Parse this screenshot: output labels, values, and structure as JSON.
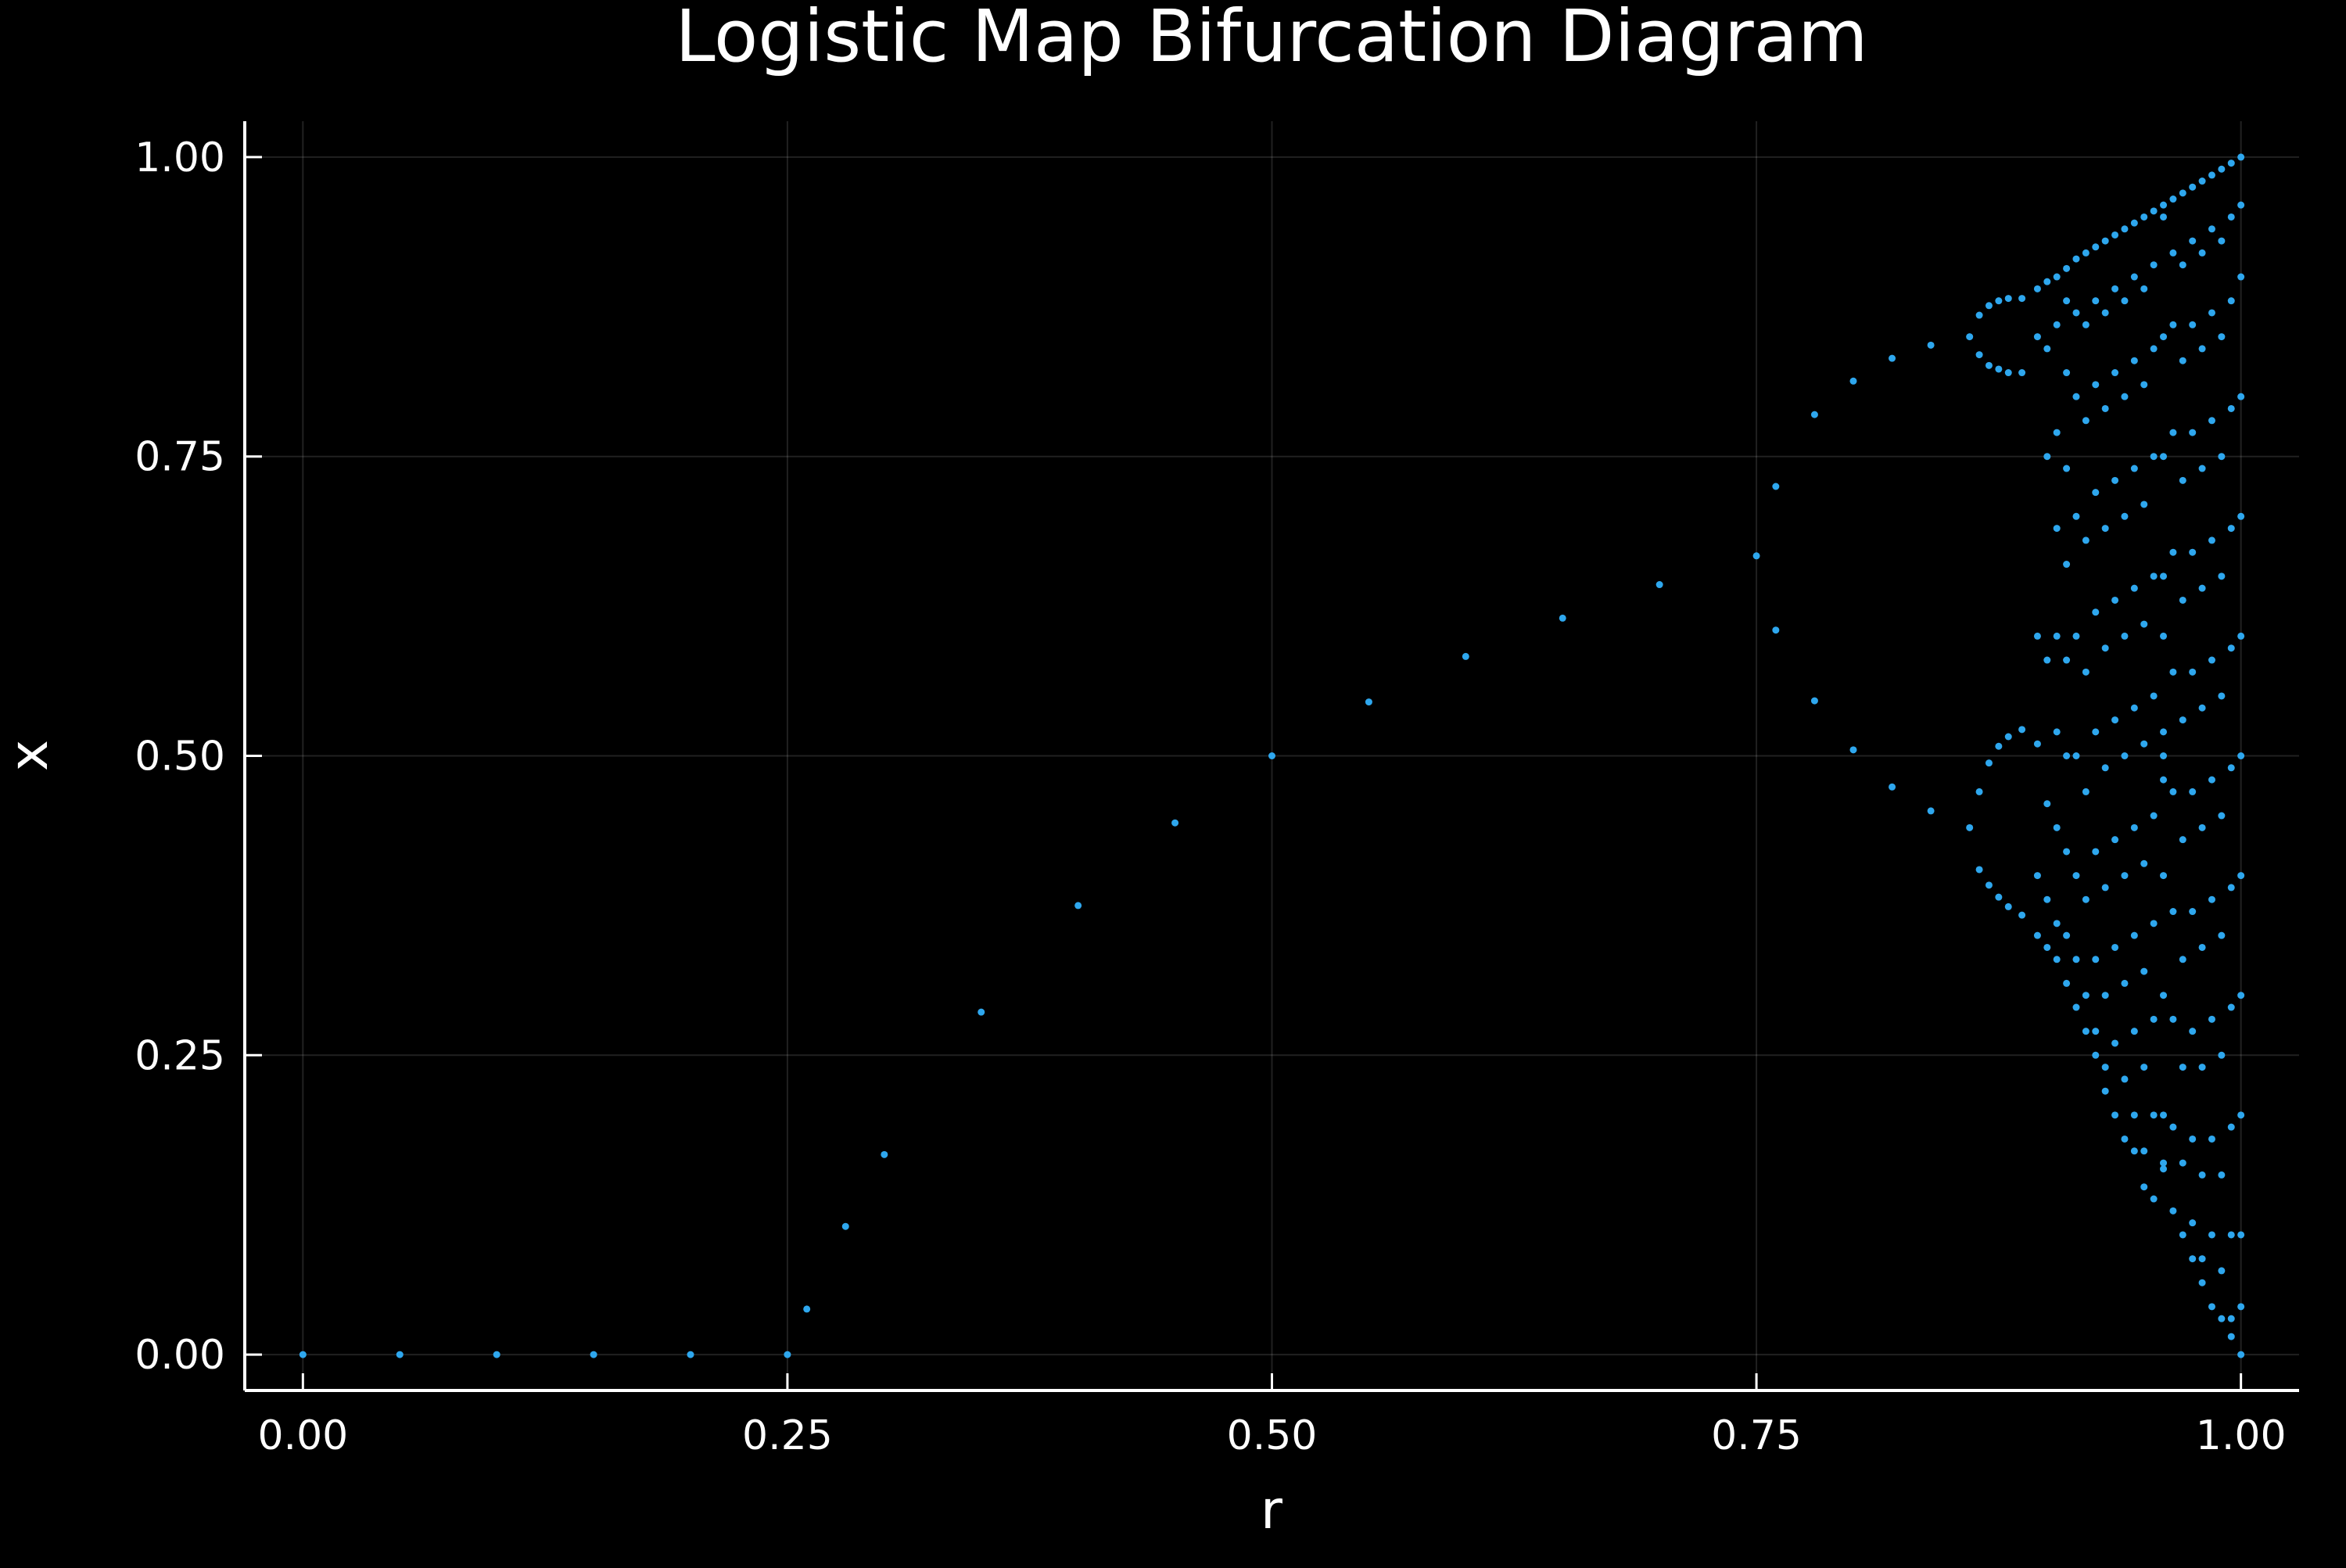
{
  "chart_data": {
    "type": "scatter",
    "title": "Logistic Map Bifurcation Diagram",
    "xlabel": "r",
    "ylabel": "x",
    "xlim": [
      -0.03,
      1.03
    ],
    "ylim": [
      -0.03,
      1.03
    ],
    "x_ticks": [
      {
        "value": 0.0,
        "label": "0.00"
      },
      {
        "value": 0.25,
        "label": "0.25"
      },
      {
        "value": 0.5,
        "label": "0.50"
      },
      {
        "value": 0.75,
        "label": "0.75"
      },
      {
        "value": 1.0,
        "label": "1.00"
      }
    ],
    "y_ticks": [
      {
        "value": 0.0,
        "label": "0.00"
      },
      {
        "value": 0.25,
        "label": "0.25"
      },
      {
        "value": 0.5,
        "label": "0.50"
      },
      {
        "value": 0.75,
        "label": "0.75"
      },
      {
        "value": 1.0,
        "label": "1.00"
      }
    ],
    "grid": true,
    "legend": "none",
    "series": [
      {
        "color": "#2ea7ee",
        "points": [
          [
            0.0,
            0.0
          ],
          [
            0.05,
            0.0
          ],
          [
            0.1,
            0.0
          ],
          [
            0.15,
            0.0
          ],
          [
            0.2,
            0.0
          ],
          [
            0.25,
            0.0
          ],
          [
            0.26,
            0.038
          ],
          [
            0.28,
            0.107
          ],
          [
            0.3,
            0.167
          ],
          [
            0.35,
            0.286
          ],
          [
            0.4,
            0.375
          ],
          [
            0.45,
            0.444
          ],
          [
            0.5,
            0.5
          ],
          [
            0.55,
            0.545
          ],
          [
            0.6,
            0.583
          ],
          [
            0.65,
            0.615
          ],
          [
            0.7,
            0.643
          ],
          [
            0.75,
            0.667
          ],
          [
            0.76,
            0.725
          ],
          [
            0.78,
            0.785
          ],
          [
            0.8,
            0.813
          ],
          [
            0.82,
            0.832
          ],
          [
            0.84,
            0.843
          ],
          [
            0.86,
            0.85
          ],
          [
            0.76,
            0.605
          ],
          [
            0.78,
            0.546
          ],
          [
            0.8,
            0.505
          ],
          [
            0.82,
            0.474
          ],
          [
            0.84,
            0.454
          ],
          [
            0.86,
            0.44
          ],
          [
            0.865,
            0.868
          ],
          [
            0.87,
            0.876
          ],
          [
            0.875,
            0.88
          ],
          [
            0.88,
            0.882
          ],
          [
            0.887,
            0.882
          ],
          [
            0.865,
            0.835
          ],
          [
            0.87,
            0.826
          ],
          [
            0.875,
            0.823
          ],
          [
            0.88,
            0.82
          ],
          [
            0.887,
            0.82
          ],
          [
            0.865,
            0.47
          ],
          [
            0.87,
            0.494
          ],
          [
            0.875,
            0.508
          ],
          [
            0.88,
            0.516
          ],
          [
            0.887,
            0.522
          ],
          [
            0.865,
            0.405
          ],
          [
            0.87,
            0.392
          ],
          [
            0.875,
            0.382
          ],
          [
            0.88,
            0.374
          ],
          [
            0.887,
            0.367
          ],
          [
            0.895,
            0.89
          ],
          [
            0.895,
            0.85
          ],
          [
            0.895,
            0.6
          ],
          [
            0.895,
            0.51
          ],
          [
            0.895,
            0.4
          ],
          [
            0.895,
            0.35
          ],
          [
            0.9,
            0.896
          ],
          [
            0.9,
            0.84
          ],
          [
            0.9,
            0.75
          ],
          [
            0.9,
            0.58
          ],
          [
            0.9,
            0.46
          ],
          [
            0.9,
            0.38
          ],
          [
            0.9,
            0.34
          ],
          [
            0.905,
            0.9
          ],
          [
            0.905,
            0.86
          ],
          [
            0.905,
            0.77
          ],
          [
            0.905,
            0.69
          ],
          [
            0.905,
            0.6
          ],
          [
            0.905,
            0.52
          ],
          [
            0.905,
            0.44
          ],
          [
            0.905,
            0.36
          ],
          [
            0.905,
            0.33
          ],
          [
            0.91,
            0.907
          ],
          [
            0.91,
            0.88
          ],
          [
            0.91,
            0.82
          ],
          [
            0.91,
            0.74
          ],
          [
            0.91,
            0.66
          ],
          [
            0.91,
            0.58
          ],
          [
            0.91,
            0.5
          ],
          [
            0.91,
            0.42
          ],
          [
            0.91,
            0.35
          ],
          [
            0.91,
            0.31
          ],
          [
            0.915,
            0.915
          ],
          [
            0.915,
            0.87
          ],
          [
            0.915,
            0.8
          ],
          [
            0.915,
            0.7
          ],
          [
            0.915,
            0.6
          ],
          [
            0.915,
            0.5
          ],
          [
            0.915,
            0.4
          ],
          [
            0.915,
            0.33
          ],
          [
            0.915,
            0.29
          ],
          [
            0.92,
            0.92
          ],
          [
            0.92,
            0.86
          ],
          [
            0.92,
            0.78
          ],
          [
            0.92,
            0.68
          ],
          [
            0.92,
            0.57
          ],
          [
            0.92,
            0.47
          ],
          [
            0.92,
            0.38
          ],
          [
            0.92,
            0.3
          ],
          [
            0.92,
            0.27
          ],
          [
            0.925,
            0.925
          ],
          [
            0.925,
            0.88
          ],
          [
            0.925,
            0.81
          ],
          [
            0.925,
            0.72
          ],
          [
            0.925,
            0.62
          ],
          [
            0.925,
            0.52
          ],
          [
            0.925,
            0.42
          ],
          [
            0.925,
            0.33
          ],
          [
            0.925,
            0.27
          ],
          [
            0.925,
            0.25
          ],
          [
            0.93,
            0.93
          ],
          [
            0.93,
            0.87
          ],
          [
            0.93,
            0.79
          ],
          [
            0.93,
            0.69
          ],
          [
            0.93,
            0.59
          ],
          [
            0.93,
            0.49
          ],
          [
            0.93,
            0.39
          ],
          [
            0.93,
            0.3
          ],
          [
            0.93,
            0.24
          ],
          [
            0.93,
            0.22
          ],
          [
            0.935,
            0.935
          ],
          [
            0.935,
            0.89
          ],
          [
            0.935,
            0.82
          ],
          [
            0.935,
            0.73
          ],
          [
            0.935,
            0.63
          ],
          [
            0.935,
            0.53
          ],
          [
            0.935,
            0.43
          ],
          [
            0.935,
            0.34
          ],
          [
            0.935,
            0.26
          ],
          [
            0.935,
            0.2
          ],
          [
            0.94,
            0.94
          ],
          [
            0.94,
            0.88
          ],
          [
            0.94,
            0.8
          ],
          [
            0.94,
            0.7
          ],
          [
            0.94,
            0.6
          ],
          [
            0.94,
            0.5
          ],
          [
            0.94,
            0.4
          ],
          [
            0.94,
            0.31
          ],
          [
            0.94,
            0.23
          ],
          [
            0.94,
            0.18
          ],
          [
            0.945,
            0.945
          ],
          [
            0.945,
            0.9
          ],
          [
            0.945,
            0.83
          ],
          [
            0.945,
            0.74
          ],
          [
            0.945,
            0.64
          ],
          [
            0.945,
            0.54
          ],
          [
            0.945,
            0.44
          ],
          [
            0.945,
            0.35
          ],
          [
            0.945,
            0.27
          ],
          [
            0.945,
            0.2
          ],
          [
            0.945,
            0.17
          ],
          [
            0.95,
            0.95
          ],
          [
            0.95,
            0.89
          ],
          [
            0.95,
            0.81
          ],
          [
            0.95,
            0.71
          ],
          [
            0.95,
            0.61
          ],
          [
            0.95,
            0.51
          ],
          [
            0.95,
            0.41
          ],
          [
            0.95,
            0.32
          ],
          [
            0.95,
            0.24
          ],
          [
            0.95,
            0.17
          ],
          [
            0.95,
            0.14
          ],
          [
            0.955,
            0.955
          ],
          [
            0.955,
            0.91
          ],
          [
            0.955,
            0.84
          ],
          [
            0.955,
            0.75
          ],
          [
            0.955,
            0.65
          ],
          [
            0.955,
            0.55
          ],
          [
            0.955,
            0.45
          ],
          [
            0.955,
            0.36
          ],
          [
            0.955,
            0.28
          ],
          [
            0.955,
            0.2
          ],
          [
            0.955,
            0.13
          ],
          [
            0.96,
            0.96
          ],
          [
            0.96,
            0.95
          ],
          [
            0.96,
            0.85
          ],
          [
            0.96,
            0.75
          ],
          [
            0.96,
            0.65
          ],
          [
            0.96,
            0.6
          ],
          [
            0.96,
            0.52
          ],
          [
            0.96,
            0.5
          ],
          [
            0.96,
            0.48
          ],
          [
            0.96,
            0.4
          ],
          [
            0.96,
            0.3
          ],
          [
            0.96,
            0.2
          ],
          [
            0.96,
            0.16
          ],
          [
            0.96,
            0.155
          ],
          [
            0.965,
            0.965
          ],
          [
            0.965,
            0.92
          ],
          [
            0.965,
            0.86
          ],
          [
            0.965,
            0.77
          ],
          [
            0.965,
            0.67
          ],
          [
            0.965,
            0.57
          ],
          [
            0.965,
            0.47
          ],
          [
            0.965,
            0.37
          ],
          [
            0.965,
            0.28
          ],
          [
            0.965,
            0.19
          ],
          [
            0.965,
            0.12
          ],
          [
            0.97,
            0.97
          ],
          [
            0.97,
            0.91
          ],
          [
            0.97,
            0.83
          ],
          [
            0.97,
            0.73
          ],
          [
            0.97,
            0.63
          ],
          [
            0.97,
            0.53
          ],
          [
            0.97,
            0.43
          ],
          [
            0.97,
            0.33
          ],
          [
            0.97,
            0.24
          ],
          [
            0.97,
            0.16
          ],
          [
            0.97,
            0.1
          ],
          [
            0.975,
            0.975
          ],
          [
            0.975,
            0.93
          ],
          [
            0.975,
            0.86
          ],
          [
            0.975,
            0.77
          ],
          [
            0.975,
            0.67
          ],
          [
            0.975,
            0.57
          ],
          [
            0.975,
            0.47
          ],
          [
            0.975,
            0.37
          ],
          [
            0.975,
            0.27
          ],
          [
            0.975,
            0.18
          ],
          [
            0.975,
            0.11
          ],
          [
            0.975,
            0.08
          ],
          [
            0.98,
            0.98
          ],
          [
            0.98,
            0.92
          ],
          [
            0.98,
            0.84
          ],
          [
            0.98,
            0.74
          ],
          [
            0.98,
            0.64
          ],
          [
            0.98,
            0.54
          ],
          [
            0.98,
            0.44
          ],
          [
            0.98,
            0.34
          ],
          [
            0.98,
            0.24
          ],
          [
            0.98,
            0.15
          ],
          [
            0.98,
            0.08
          ],
          [
            0.98,
            0.06
          ],
          [
            0.985,
            0.985
          ],
          [
            0.985,
            0.94
          ],
          [
            0.985,
            0.87
          ],
          [
            0.985,
            0.78
          ],
          [
            0.985,
            0.68
          ],
          [
            0.985,
            0.58
          ],
          [
            0.985,
            0.48
          ],
          [
            0.985,
            0.38
          ],
          [
            0.985,
            0.28
          ],
          [
            0.985,
            0.18
          ],
          [
            0.985,
            0.1
          ],
          [
            0.985,
            0.04
          ],
          [
            0.99,
            0.99
          ],
          [
            0.99,
            0.93
          ],
          [
            0.99,
            0.85
          ],
          [
            0.99,
            0.75
          ],
          [
            0.99,
            0.65
          ],
          [
            0.99,
            0.55
          ],
          [
            0.99,
            0.45
          ],
          [
            0.99,
            0.35
          ],
          [
            0.99,
            0.25
          ],
          [
            0.99,
            0.15
          ],
          [
            0.99,
            0.07
          ],
          [
            0.99,
            0.03
          ],
          [
            0.995,
            0.995
          ],
          [
            0.995,
            0.95
          ],
          [
            0.995,
            0.88
          ],
          [
            0.995,
            0.79
          ],
          [
            0.995,
            0.69
          ],
          [
            0.995,
            0.59
          ],
          [
            0.995,
            0.49
          ],
          [
            0.995,
            0.39
          ],
          [
            0.995,
            0.29
          ],
          [
            0.995,
            0.19
          ],
          [
            0.995,
            0.1
          ],
          [
            0.995,
            0.03
          ],
          [
            0.995,
            0.015
          ],
          [
            1.0,
            1.0
          ],
          [
            1.0,
            0.96
          ],
          [
            1.0,
            0.9
          ],
          [
            1.0,
            0.8
          ],
          [
            1.0,
            0.7
          ],
          [
            1.0,
            0.6
          ],
          [
            1.0,
            0.5
          ],
          [
            1.0,
            0.4
          ],
          [
            1.0,
            0.3
          ],
          [
            1.0,
            0.2
          ],
          [
            1.0,
            0.1
          ],
          [
            1.0,
            0.04
          ],
          [
            1.0,
            0.0
          ]
        ]
      }
    ]
  }
}
